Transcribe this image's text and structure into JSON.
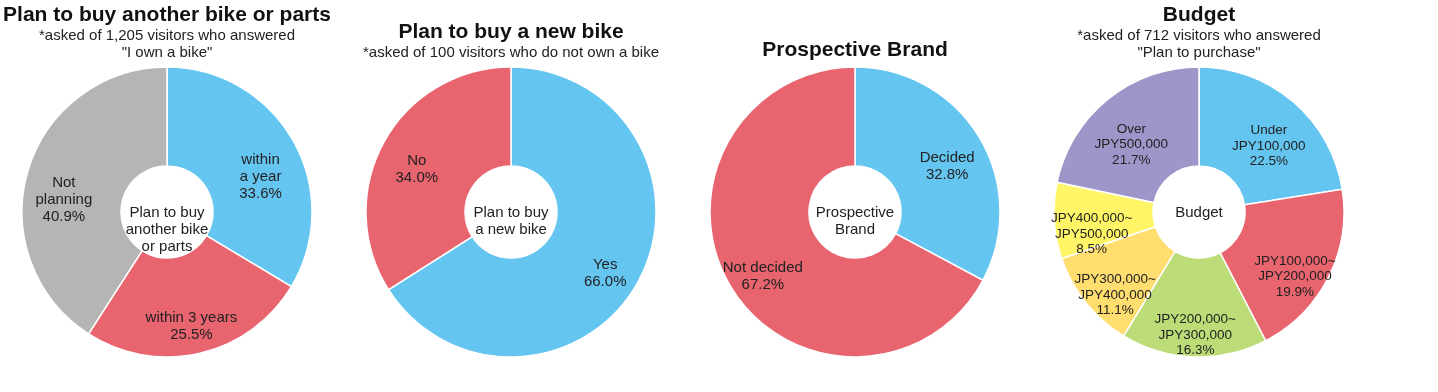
{
  "chart_data": [
    {
      "type": "donut",
      "title": "Plan to buy another bike or parts",
      "subtitle": "*asked of 1,205 visitors who answered\n\"I own a bike\"",
      "categories": [
        "within\na year",
        "within 3 years",
        "Not\nplanning"
      ],
      "values": [
        33.6,
        25.5,
        40.9
      ],
      "value_labels": [
        "33.6%",
        "25.5%",
        "40.9%"
      ],
      "colors": [
        "#64c5f0",
        "#e8646e",
        "#b5b5b5"
      ],
      "annotations": [
        "Plan to buy\nanother bike\nor parts"
      ],
      "legend": false
    },
    {
      "type": "donut",
      "title": "Plan to buy a new bike",
      "subtitle": "*asked of 100 visitors who do not own a bike",
      "categories": [
        "Yes",
        "No"
      ],
      "values": [
        66.0,
        34.0
      ],
      "value_labels": [
        "66.0%",
        "34.0%"
      ],
      "colors": [
        "#64c5f0",
        "#e8646e"
      ],
      "annotations": [
        "Plan to buy\na new bike"
      ],
      "legend": false
    },
    {
      "type": "donut",
      "title": "Prospective Brand",
      "categories": [
        "Decided",
        "Not decided"
      ],
      "values": [
        32.8,
        67.2
      ],
      "value_labels": [
        "32.8%",
        "67.2%"
      ],
      "colors": [
        "#64c5f0",
        "#e8646e"
      ],
      "annotations": [
        "Prospective\nBrand"
      ],
      "legend": false
    },
    {
      "type": "donut",
      "title": "Budget",
      "subtitle": "*asked of 712 visitors who answered\n\"Plan to purchase\"",
      "categories": [
        "Under\nJPY100,000",
        "JPY100,000~\nJPY200,000",
        "JPY200,000~\nJPY300,000",
        "JPY300,000~\nJPY400,000",
        "JPY400,000~\nJPY500,000",
        "Over\nJPY500,000"
      ],
      "values": [
        22.5,
        19.9,
        16.3,
        11.1,
        8.5,
        21.7
      ],
      "value_labels": [
        "22.5%",
        "19.9%",
        "16.3%",
        "11.1%",
        "8.5%",
        "21.7%"
      ],
      "colors": [
        "#64c5f0",
        "#e8646e",
        "#bcdc78",
        "#ffdd6e",
        "#fff566",
        "#9e95c8"
      ],
      "annotations": [
        "Budget"
      ],
      "legend": false
    }
  ]
}
